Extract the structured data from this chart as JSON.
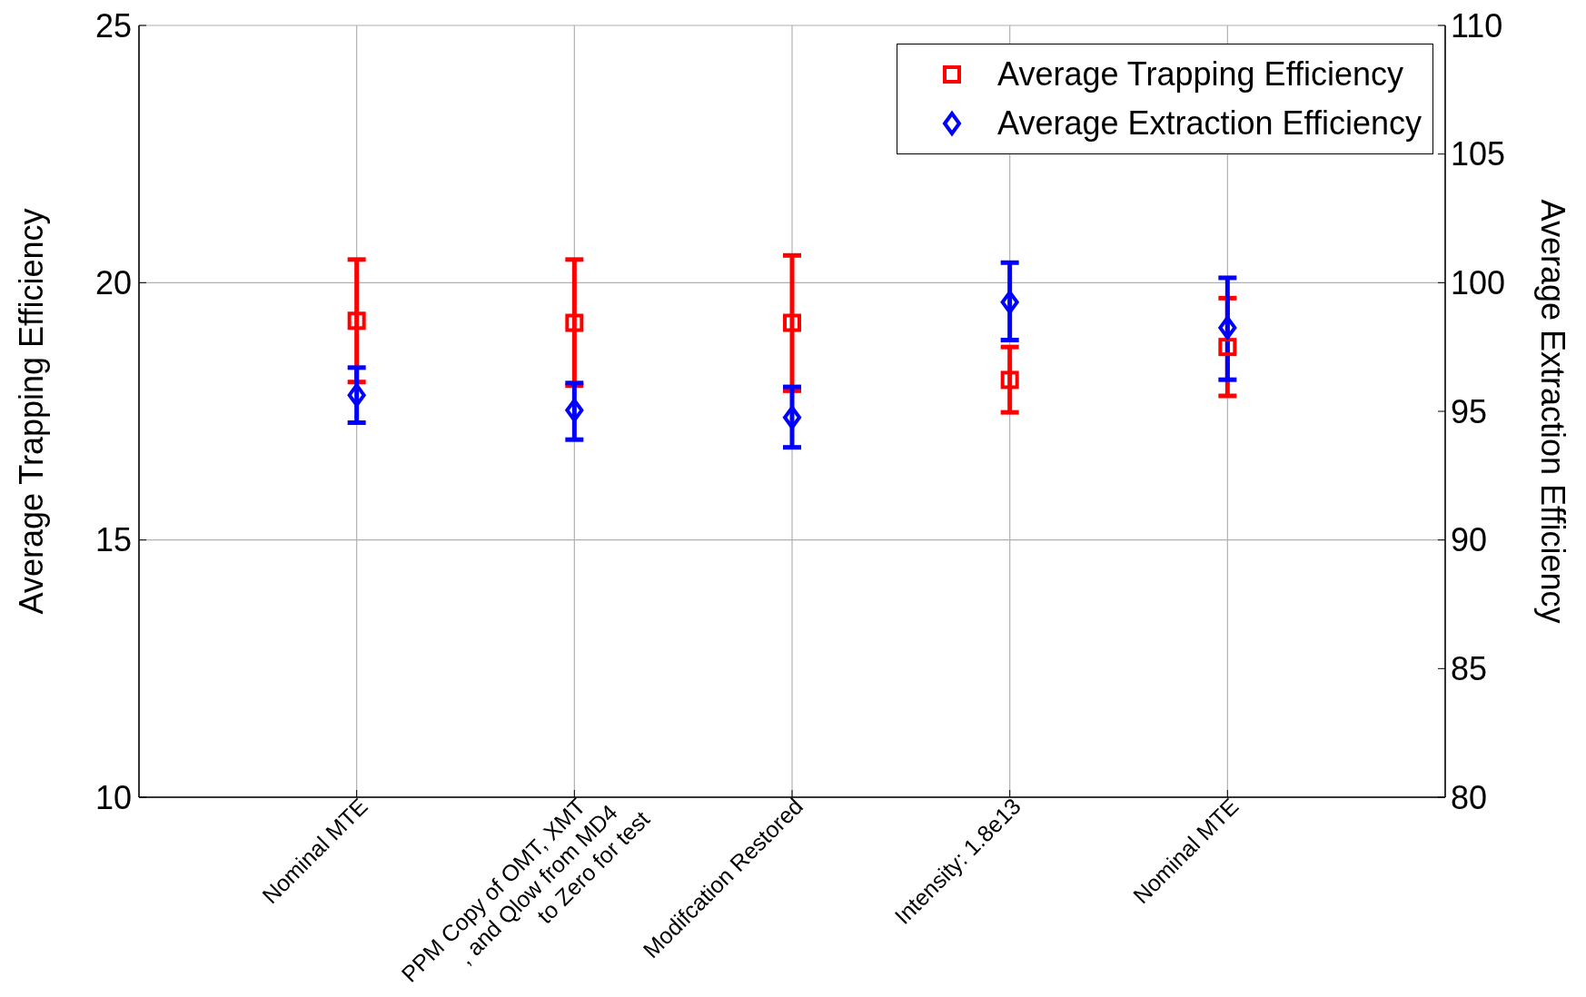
{
  "chart_data": {
    "type": "scatter",
    "categories": [
      "Nominal MTE",
      "PPM Copy of OMT, XMT\n, and Qlow from MD4\nto Zero for test",
      "Modifcation Restored",
      "Intensity: 1.8e13",
      "Nominal MTE"
    ],
    "ylabel": "Average Trapping Efficiency",
    "y2label": "Average Extraction Efficiency",
    "ylim": [
      10,
      25
    ],
    "yticks": [
      10,
      15,
      20,
      25
    ],
    "y2lim": [
      80,
      110
    ],
    "y2ticks": [
      80,
      85,
      90,
      95,
      100,
      105,
      110
    ],
    "grid": true,
    "legend": "top right",
    "series": [
      {
        "name": "Average Trapping Efficiency",
        "color": "#ff0000",
        "marker": "square",
        "values": [
          19.26,
          19.22,
          19.22,
          18.11,
          18.75
        ],
        "errors": [
          [
            18.07,
            20.45
          ],
          [
            18.0,
            20.45
          ],
          [
            17.9,
            20.53
          ],
          [
            17.48,
            18.75
          ],
          [
            17.8,
            19.7
          ]
        ]
      },
      {
        "name": "Average Extraction Efficiency",
        "color": "#0000ff",
        "marker": "diamond",
        "axis": "y2",
        "values": [
          95.63,
          95.04,
          94.76,
          99.24,
          98.25
        ],
        "errors": [
          [
            94.56,
            96.7
          ],
          [
            93.9,
            96.1
          ],
          [
            93.6,
            95.95
          ],
          [
            97.77,
            100.78
          ],
          [
            96.23,
            100.19
          ]
        ]
      }
    ]
  }
}
